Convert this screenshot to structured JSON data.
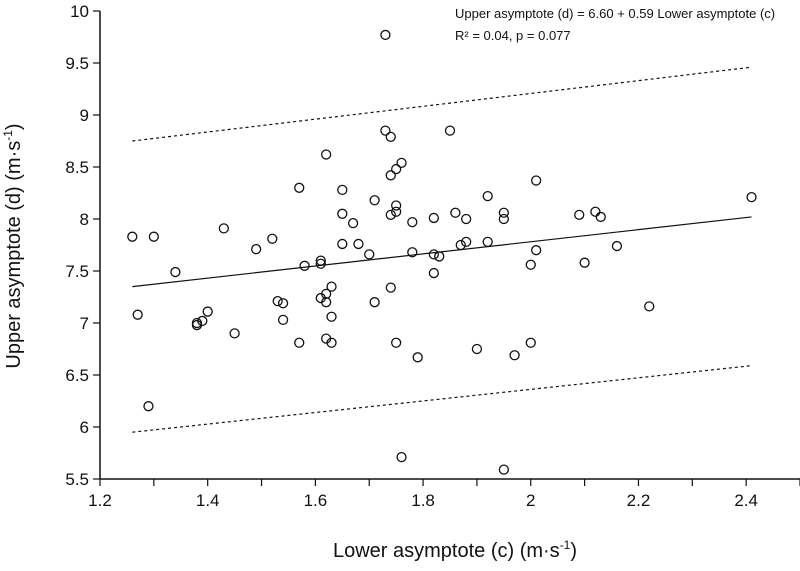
{
  "chart_data": {
    "type": "scatter",
    "title": "",
    "xlabel": "Lower asymptote (c) (m·s",
    "xlabel_sup": "-1",
    "xlabel_end": ")",
    "ylabel": "Upper asymptote (d) (m·s",
    "ylabel_sup": "-1",
    "ylabel_end": ")",
    "xlim": [
      1.2,
      2.5
    ],
    "ylim": [
      5.5,
      10
    ],
    "x_ticks": [
      1.2,
      1.4,
      1.6,
      1.8,
      2,
      2.2,
      2.4
    ],
    "x_tick_labels": [
      "1.2",
      "1.4",
      "1.6",
      "1.8",
      "2",
      "2.2",
      "2.4"
    ],
    "y_ticks": [
      5.5,
      6,
      6.5,
      7,
      7.5,
      8,
      8.5,
      9,
      9.5,
      10
    ],
    "y_tick_labels": [
      "5.5",
      "6",
      "6.5",
      "7",
      "7.5",
      "8",
      "8.5",
      "9",
      "9.5",
      "10"
    ],
    "annotation_line1": "Upper asymptote (d) = 6.60 + 0.59 Lower asymptote (c)",
    "annotation_line2": "R² = 0.04, p = 0.077",
    "regression": {
      "x": [
        1.26,
        2.41
      ],
      "y": [
        7.35,
        8.02
      ]
    },
    "upper_bound": {
      "x": [
        1.26,
        2.41
      ],
      "y": [
        8.75,
        9.46
      ]
    },
    "lower_bound": {
      "x": [
        1.26,
        2.41
      ],
      "y": [
        5.95,
        6.59
      ]
    },
    "points": [
      [
        1.26,
        7.83
      ],
      [
        1.27,
        7.08
      ],
      [
        1.29,
        6.2
      ],
      [
        1.3,
        7.83
      ],
      [
        1.34,
        7.49
      ],
      [
        1.38,
        6.98
      ],
      [
        1.38,
        7.0
      ],
      [
        1.39,
        7.02
      ],
      [
        1.4,
        7.11
      ],
      [
        1.43,
        7.91
      ],
      [
        1.45,
        6.9
      ],
      [
        1.49,
        7.71
      ],
      [
        1.52,
        7.81
      ],
      [
        1.53,
        7.21
      ],
      [
        1.54,
        7.19
      ],
      [
        1.54,
        7.03
      ],
      [
        1.57,
        8.3
      ],
      [
        1.57,
        6.81
      ],
      [
        1.58,
        7.55
      ],
      [
        1.61,
        7.6
      ],
      [
        1.61,
        7.57
      ],
      [
        1.61,
        7.24
      ],
      [
        1.62,
        6.85
      ],
      [
        1.62,
        7.2
      ],
      [
        1.62,
        7.28
      ],
      [
        1.62,
        8.62
      ],
      [
        1.63,
        7.35
      ],
      [
        1.63,
        7.06
      ],
      [
        1.63,
        6.81
      ],
      [
        1.65,
        8.05
      ],
      [
        1.65,
        7.76
      ],
      [
        1.65,
        8.28
      ],
      [
        1.67,
        7.96
      ],
      [
        1.68,
        7.76
      ],
      [
        1.7,
        7.66
      ],
      [
        1.71,
        8.18
      ],
      [
        1.71,
        7.2
      ],
      [
        1.73,
        9.77
      ],
      [
        1.73,
        8.85
      ],
      [
        1.74,
        8.79
      ],
      [
        1.74,
        7.34
      ],
      [
        1.74,
        8.04
      ],
      [
        1.74,
        8.42
      ],
      [
        1.75,
        8.48
      ],
      [
        1.75,
        8.13
      ],
      [
        1.75,
        6.81
      ],
      [
        1.75,
        8.07
      ],
      [
        1.76,
        8.54
      ],
      [
        1.76,
        5.71
      ],
      [
        1.78,
        7.68
      ],
      [
        1.78,
        7.97
      ],
      [
        1.79,
        6.67
      ],
      [
        1.82,
        7.48
      ],
      [
        1.82,
        7.66
      ],
      [
        1.82,
        8.01
      ],
      [
        1.83,
        7.64
      ],
      [
        1.85,
        8.85
      ],
      [
        1.86,
        8.06
      ],
      [
        1.87,
        7.75
      ],
      [
        1.88,
        8.0
      ],
      [
        1.88,
        7.78
      ],
      [
        1.9,
        6.75
      ],
      [
        1.92,
        7.78
      ],
      [
        1.92,
        8.22
      ],
      [
        1.95,
        5.59
      ],
      [
        1.95,
        8.06
      ],
      [
        1.95,
        8.0
      ],
      [
        1.97,
        6.69
      ],
      [
        2.0,
        6.81
      ],
      [
        2.0,
        7.56
      ],
      [
        2.01,
        8.37
      ],
      [
        2.01,
        7.7
      ],
      [
        2.09,
        8.04
      ],
      [
        2.1,
        7.58
      ],
      [
        2.12,
        8.07
      ],
      [
        2.13,
        8.02
      ],
      [
        2.16,
        7.74
      ],
      [
        2.22,
        7.16
      ],
      [
        2.41,
        8.21
      ]
    ]
  }
}
